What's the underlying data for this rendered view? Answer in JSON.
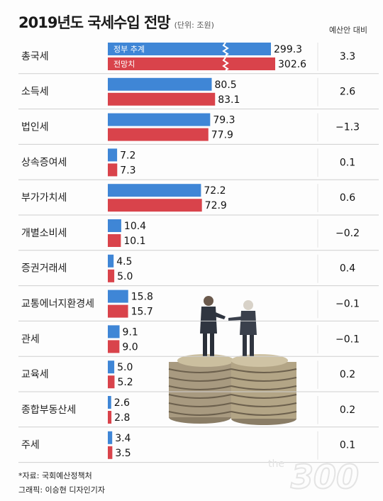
{
  "title": "2019년도 국세수입 전망",
  "unit": "(단위: 조원)",
  "diff_header": "예산안 대비",
  "colors": {
    "gov": "#3f86d6",
    "forecast": "#d9434b",
    "grid": "#cfcfcf"
  },
  "chart_data": {
    "type": "bar",
    "orientation": "horizontal",
    "categories": [
      "총국세",
      "소득세",
      "법인세",
      "상속증여세",
      "부가가치세",
      "개별소비세",
      "증권거래세",
      "교통에너지환경세",
      "관세",
      "교육세",
      "종합부동산세",
      "주세"
    ],
    "series": [
      {
        "name": "정부 추계",
        "values": [
          299.3,
          80.5,
          79.3,
          7.2,
          72.2,
          10.4,
          4.5,
          15.8,
          9.1,
          5.0,
          2.6,
          3.4
        ]
      },
      {
        "name": "전망치",
        "values": [
          302.6,
          83.1,
          77.9,
          7.3,
          72.9,
          10.1,
          5.0,
          15.7,
          9.0,
          5.2,
          2.8,
          3.5
        ]
      }
    ],
    "value_labels": {
      "gov": [
        "299.3",
        "80.5",
        "79.3",
        "7.2",
        "72.2",
        "10.4",
        "4.5",
        "15.8",
        "9.1",
        "5.0",
        "2.6",
        "3.4"
      ],
      "forecast": [
        "302.6",
        "83.1",
        "77.9",
        "7.3",
        "72.9",
        "10.1",
        "5.0",
        "15.7",
        "9.0",
        "5.2",
        "2.8",
        "3.5"
      ]
    },
    "diff_labels": [
      "3.3",
      "2.6",
      "−1.3",
      "0.1",
      "0.6",
      "−0.2",
      "0.4",
      "−0.1",
      "−0.1",
      "0.2",
      "0.2",
      "0.1"
    ],
    "axis_break": "총국세 bars truncated with a break mark"
  },
  "footer": {
    "source": "*자료: 국회예산정책처",
    "graphic": "그래픽: 이승현 디자인기자"
  },
  "watermark": "the300"
}
